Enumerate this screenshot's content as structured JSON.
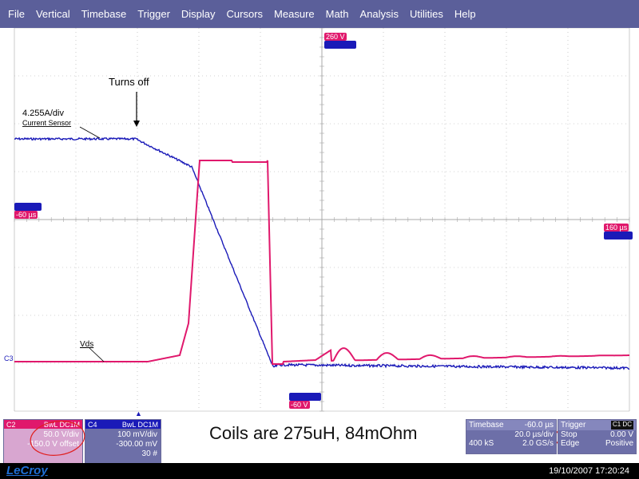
{
  "menu": [
    "File",
    "Vertical",
    "Timebase",
    "Trigger",
    "Display",
    "Cursors",
    "Measure",
    "Math",
    "Analysis",
    "Utilities",
    "Help"
  ],
  "annotations": {
    "turns_off": "Turns off",
    "current_scale": "4.255A/div",
    "current_sensor": "Current Sensor",
    "vds": "Vds",
    "c3_marker": "C3"
  },
  "trace_tags": {
    "top_red": "260 V",
    "left_red": "-60 µs",
    "right_red": "160 µs",
    "bottom_red": "-60 V"
  },
  "channels": {
    "c2": {
      "label": "C2",
      "badge": "BwL DC1M",
      "volts_div": "50.0 V/div",
      "offset": "-150.0 V offset"
    },
    "c4": {
      "label": "C4",
      "badge": "BwL DC1M",
      "volts_div": "100 mV/div",
      "offset": "-300.00 mV",
      "sweeps": "30 #"
    }
  },
  "note": "Coils are 275uH, 84mOhm",
  "timebase": {
    "title": "Timebase",
    "delay": "-60.0 µs",
    "time_div": "20.0 µs/div",
    "samples": "400 kS",
    "rate": "2.0 GS/s"
  },
  "trigger": {
    "title": "Trigger",
    "badge": "C1 DC",
    "mode": "Stop",
    "level": "0.00 V",
    "type": "Edge",
    "slope": "Positive"
  },
  "status": {
    "brand": "LeCroy",
    "datetime": "19/10/2007 17:20:24"
  },
  "colors": {
    "menubar": "#5b5f9a",
    "c2_trace": "#e0186c",
    "c4_trace": "#1a1ab8",
    "grid": "#a8a8a8"
  }
}
